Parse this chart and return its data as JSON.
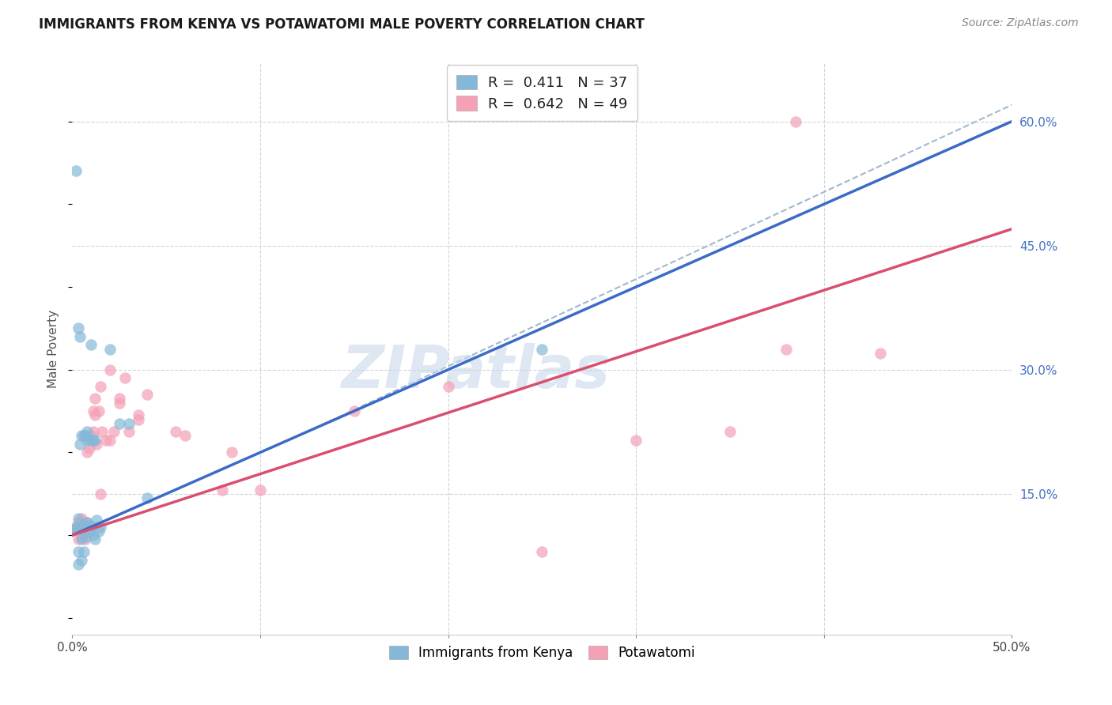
{
  "title": "IMMIGRANTS FROM KENYA VS POTAWATOMI MALE POVERTY CORRELATION CHART",
  "source": "Source: ZipAtlas.com",
  "ylabel": "Male Poverty",
  "xlim": [
    0.0,
    0.5
  ],
  "ylim": [
    -0.02,
    0.67
  ],
  "xticks": [
    0.0,
    0.1,
    0.2,
    0.3,
    0.4,
    0.5
  ],
  "ytick_positions": [
    0.0,
    0.15,
    0.3,
    0.45,
    0.6
  ],
  "ytick_labels": [
    "",
    "15.0%",
    "30.0%",
    "45.0%",
    "60.0%"
  ],
  "legend_R1": "0.411",
  "legend_N1": "37",
  "legend_R2": "0.642",
  "legend_N2": "49",
  "kenya_color": "#85b8d8",
  "potawatomi_color": "#f4a0b5",
  "kenya_line_color": "#3b6bc7",
  "potawatomi_line_color": "#d94f70",
  "dashed_line_color": "#a0b8d0",
  "watermark_text": "ZIPatlas",
  "kenya_line_x0": 0.0,
  "kenya_line_y0": 0.1,
  "kenya_line_x1": 0.5,
  "kenya_line_y1": 0.6,
  "potawatomi_line_x0": 0.0,
  "potawatomi_line_y0": 0.1,
  "potawatomi_line_x1": 0.5,
  "potawatomi_line_y1": 0.47,
  "dashed_line_x0": 0.12,
  "dashed_line_y0": 0.22,
  "dashed_line_x1": 0.5,
  "dashed_line_y1": 0.62,
  "kenya_x": [
    0.001,
    0.002,
    0.003,
    0.004,
    0.005,
    0.006,
    0.007,
    0.008,
    0.009,
    0.01,
    0.011,
    0.012,
    0.013,
    0.014,
    0.015,
    0.004,
    0.006,
    0.008,
    0.01,
    0.011,
    0.007,
    0.012,
    0.003,
    0.005,
    0.003,
    0.006,
    0.003,
    0.008,
    0.01,
    0.004,
    0.002,
    0.005,
    0.025,
    0.03,
    0.04,
    0.25,
    0.02
  ],
  "kenya_y": [
    0.107,
    0.11,
    0.12,
    0.108,
    0.095,
    0.113,
    0.098,
    0.115,
    0.105,
    0.112,
    0.1,
    0.095,
    0.118,
    0.105,
    0.11,
    0.21,
    0.22,
    0.215,
    0.215,
    0.215,
    0.22,
    0.215,
    0.065,
    0.07,
    0.08,
    0.08,
    0.35,
    0.225,
    0.33,
    0.34,
    0.54,
    0.22,
    0.235,
    0.235,
    0.145,
    0.325,
    0.325
  ],
  "potawatomi_x": [
    0.001,
    0.002,
    0.003,
    0.003,
    0.004,
    0.005,
    0.005,
    0.006,
    0.007,
    0.007,
    0.008,
    0.009,
    0.01,
    0.011,
    0.012,
    0.013,
    0.014,
    0.015,
    0.008,
    0.009,
    0.01,
    0.011,
    0.012,
    0.015,
    0.016,
    0.018,
    0.02,
    0.022,
    0.025,
    0.028,
    0.03,
    0.035,
    0.04,
    0.06,
    0.08,
    0.1,
    0.15,
    0.2,
    0.25,
    0.3,
    0.35,
    0.38,
    0.43,
    0.02,
    0.025,
    0.035,
    0.055,
    0.085,
    0.385
  ],
  "potawatomi_y": [
    0.107,
    0.108,
    0.095,
    0.115,
    0.11,
    0.098,
    0.12,
    0.11,
    0.095,
    0.115,
    0.2,
    0.205,
    0.22,
    0.25,
    0.265,
    0.21,
    0.25,
    0.28,
    0.115,
    0.105,
    0.215,
    0.225,
    0.245,
    0.15,
    0.225,
    0.215,
    0.215,
    0.225,
    0.26,
    0.29,
    0.225,
    0.24,
    0.27,
    0.22,
    0.155,
    0.155,
    0.25,
    0.28,
    0.08,
    0.215,
    0.225,
    0.325,
    0.32,
    0.3,
    0.265,
    0.245,
    0.225,
    0.2,
    0.6
  ]
}
